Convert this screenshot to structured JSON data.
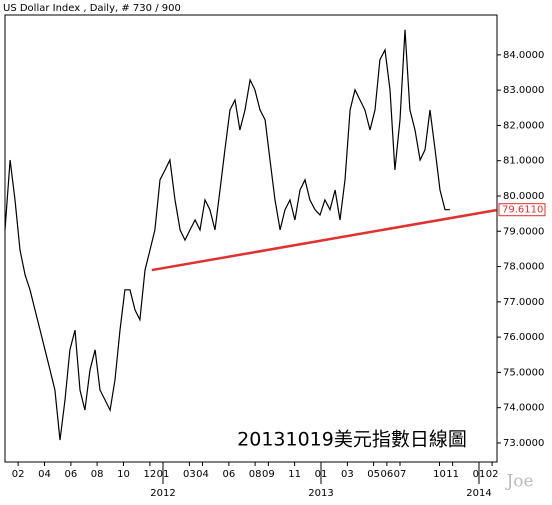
{
  "chart_data": {
    "type": "line",
    "title": "US Dollar Index , Daily, # 730 / 900",
    "annotation": "20131019美元指數日線圖",
    "watermark": "Joe",
    "series": [
      {
        "name": "US Dollar Index",
        "color": "#000000",
        "x": [
          2011.0,
          2011.032,
          2011.063,
          2011.095,
          2011.127,
          2011.158,
          2011.19,
          2011.222,
          2011.253,
          2011.285,
          2011.316,
          2011.348,
          2011.38,
          2011.411,
          2011.443,
          2011.475,
          2011.506,
          2011.538,
          2011.57,
          2011.601,
          2011.633,
          2011.665,
          2011.696,
          2011.728,
          2011.759,
          2011.791,
          2011.823,
          2011.854,
          2011.886,
          2011.918,
          2011.949,
          2011.981,
          2012.013,
          2012.044,
          2012.076,
          2012.108,
          2012.139,
          2012.171,
          2012.203,
          2012.234,
          2012.266,
          2012.297,
          2012.329,
          2012.361,
          2012.392,
          2012.424,
          2012.456,
          2012.487,
          2012.519,
          2012.551,
          2012.582,
          2012.614,
          2012.646,
          2012.677,
          2012.709,
          2012.741,
          2012.772,
          2012.804,
          2012.835,
          2012.867,
          2012.899,
          2012.93,
          2012.962,
          2012.994,
          2013.025,
          2013.057,
          2013.089,
          2013.12,
          2013.152,
          2013.184,
          2013.215,
          2013.247,
          2013.278,
          2013.31,
          2013.342,
          2013.373,
          2013.405,
          2013.437,
          2013.468,
          2013.5,
          2013.532,
          2013.563,
          2013.595,
          2013.627,
          2013.658,
          2013.69,
          2013.722,
          2013.753,
          2013.785,
          2013.816
        ],
        "values": [
          79.04,
          81.02,
          79.89,
          78.47,
          77.76,
          77.34,
          76.77,
          76.2,
          75.64,
          75.07,
          74.5,
          73.08,
          74.22,
          75.64,
          76.2,
          74.5,
          73.93,
          75.07,
          75.64,
          74.5,
          74.22,
          73.93,
          74.79,
          76.2,
          77.34,
          77.34,
          76.77,
          76.49,
          77.9,
          78.47,
          79.04,
          80.46,
          80.74,
          81.02,
          79.89,
          79.04,
          78.75,
          79.04,
          79.32,
          79.04,
          79.89,
          79.61,
          79.04,
          80.17,
          81.31,
          82.44,
          82.72,
          81.87,
          82.44,
          83.29,
          83.01,
          82.44,
          82.16,
          81.02,
          79.89,
          79.04,
          79.61,
          79.89,
          79.32,
          80.17,
          80.46,
          79.89,
          79.61,
          79.46,
          79.89,
          79.61,
          80.17,
          79.32,
          80.46,
          82.44,
          83.01,
          82.72,
          82.44,
          81.87,
          82.44,
          83.86,
          84.14,
          83.01,
          80.74,
          82.16,
          84.71,
          82.44,
          81.87,
          81.02,
          81.31,
          82.44,
          81.31,
          80.17,
          79.61,
          79.611
        ]
      }
    ],
    "trendline": {
      "x": [
        2011.93,
        2014.11
      ],
      "y": [
        77.9,
        79.6
      ],
      "color": "#e03030"
    },
    "last_price": {
      "value": 79.611,
      "label": "79.6110",
      "color": "#e03030"
    },
    "xlim": [
      2011.0,
      2014.114
    ],
    "ylim": [
      72.46,
      85.13
    ],
    "yticks": [
      {
        "value": 73,
        "label": "73.0000"
      },
      {
        "value": 74,
        "label": "74.0000"
      },
      {
        "value": 75,
        "label": "75.0000"
      },
      {
        "value": 76,
        "label": "76.0000"
      },
      {
        "value": 77,
        "label": "77.0000"
      },
      {
        "value": 78,
        "label": "78.0000"
      },
      {
        "value": 79,
        "label": "79.0000"
      },
      {
        "value": 80,
        "label": "80.0000"
      },
      {
        "value": 81,
        "label": "81.0000"
      },
      {
        "value": 82,
        "label": "82.0000"
      },
      {
        "value": 83,
        "label": "83.0000"
      },
      {
        "value": 84,
        "label": "84.0000"
      }
    ],
    "xticks": [
      {
        "value": 2011.083,
        "label": "02"
      },
      {
        "value": 2011.25,
        "label": "04"
      },
      {
        "value": 2011.417,
        "label": "06"
      },
      {
        "value": 2011.583,
        "label": "08"
      },
      {
        "value": 2011.75,
        "label": "10"
      },
      {
        "value": 2011.917,
        "label": "12"
      },
      {
        "value": 2012.0,
        "label": "01"
      },
      {
        "value": 2012.167,
        "label": "03"
      },
      {
        "value": 2012.25,
        "label": "04"
      },
      {
        "value": 2012.417,
        "label": "06"
      },
      {
        "value": 2012.583,
        "label": "08"
      },
      {
        "value": 2012.667,
        "label": "09"
      },
      {
        "value": 2012.833,
        "label": "11"
      },
      {
        "value": 2013.0,
        "label": "01"
      },
      {
        "value": 2013.167,
        "label": "03"
      },
      {
        "value": 2013.333,
        "label": "05"
      },
      {
        "value": 2013.417,
        "label": "06"
      },
      {
        "value": 2013.5,
        "label": "07"
      },
      {
        "value": 2013.75,
        "label": "10"
      },
      {
        "value": 2013.833,
        "label": "11"
      },
      {
        "value": 2014.0,
        "label": "01"
      },
      {
        "value": 2014.083,
        "label": "02"
      }
    ],
    "year_ticks": [
      2012,
      2013,
      2014
    ]
  }
}
